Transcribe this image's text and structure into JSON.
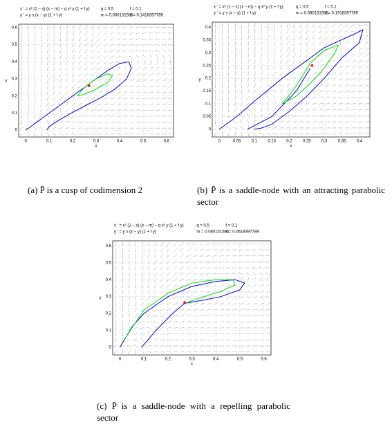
{
  "chart_data": [
    {
      "type": "line",
      "equation_x": "x ' = x² (1 − x) (x − m) − q x² y (1 + f y)",
      "equation_y": "y ' = y s (x − y) (1 + f y)",
      "params": {
        "q": {
          "value": 0.5,
          "label": "q = 0.5"
        },
        "f": {
          "value": 0.1,
          "label": "f = 0.1"
        },
        "m": {
          "value": 0.080131585,
          "label": "m = 0.080131585"
        },
        "s": {
          "value": 0.1418397789,
          "label": "s = 0.1418397789"
        }
      },
      "xlabel": "x",
      "ylabel": "y",
      "xlim": [
        -0.03,
        0.63
      ],
      "ylim": [
        -0.04,
        0.62
      ],
      "xticks": [
        0,
        0.1,
        0.2,
        0.3,
        0.4,
        0.5,
        0.6
      ],
      "yticks": [
        0,
        0.1,
        0.2,
        0.3,
        0.4,
        0.5,
        0.6
      ],
      "series": [
        {
          "color": "#0000dd",
          "x": [
            0,
            0.05,
            0.1,
            0.15,
            0.2,
            0.25,
            0.3,
            0.35,
            0.4,
            0.44,
            0.45,
            0.43,
            0.38,
            0.32,
            0.25,
            0.18,
            0.12,
            0.1,
            0.09
          ],
          "values": [
            0,
            0.05,
            0.1,
            0.15,
            0.2,
            0.25,
            0.3,
            0.35,
            0.39,
            0.4,
            0.36,
            0.3,
            0.24,
            0.19,
            0.14,
            0.09,
            0.04,
            0.02,
            0
          ]
        },
        {
          "color": "#00dd00",
          "x": [
            0.22,
            0.25,
            0.3,
            0.35,
            0.37,
            0.35,
            0.3,
            0.25,
            0.22
          ],
          "values": [
            0.2,
            0.25,
            0.3,
            0.33,
            0.32,
            0.28,
            0.24,
            0.21,
            0.2
          ]
        },
        {
          "color": "#ff0000",
          "x": [
            0.27
          ],
          "values": [
            0.26
          ]
        }
      ]
    },
    {
      "type": "line",
      "equation_x": "x ' = x² (1 − x) (x − m) − q x² y (1 + f y)",
      "equation_y": "y ' = y s (x − y) (1 + f y)",
      "params": {
        "q": {
          "value": 0.5,
          "label": "q = 0.5"
        },
        "f": {
          "value": 0.1,
          "label": "f = 0.1"
        },
        "m": {
          "value": 0.080131585,
          "label": "m = 0.080131585"
        },
        "s": {
          "value": 0.1918397789,
          "label": "s = 0.1918397789"
        }
      },
      "xlabel": "x",
      "ylabel": "y",
      "xlim": [
        -0.02,
        0.43
      ],
      "ylim": [
        -0.03,
        0.42
      ],
      "xticks": [
        0,
        0.05,
        0.1,
        0.15,
        0.2,
        0.25,
        0.3,
        0.35,
        0.4
      ],
      "yticks": [
        0,
        0.05,
        0.1,
        0.15,
        0.2,
        0.25,
        0.3,
        0.35,
        0.4
      ],
      "series": [
        {
          "color": "#0000dd",
          "x": [
            0,
            0.05,
            0.1,
            0.18,
            0.25,
            0.3,
            0.38,
            0.41,
            0.4,
            0.35,
            0.3,
            0.25,
            0.2,
            0.15,
            0.12,
            0.1
          ],
          "values": [
            0,
            0.05,
            0.11,
            0.2,
            0.27,
            0.32,
            0.37,
            0.39,
            0.34,
            0.28,
            0.2,
            0.13,
            0.07,
            0.02,
            0.005,
            0
          ]
        },
        {
          "color": "#0000dd",
          "x": [
            0.08,
            0.15,
            0.22,
            0.26
          ],
          "values": [
            0,
            0.05,
            0.15,
            0.24
          ]
        },
        {
          "color": "#00dd00",
          "x": [
            0.18,
            0.22,
            0.26,
            0.3,
            0.34,
            0.33,
            0.3,
            0.26,
            0.22,
            0.18
          ],
          "values": [
            0.1,
            0.17,
            0.26,
            0.31,
            0.33,
            0.3,
            0.24,
            0.18,
            0.13,
            0.1
          ]
        },
        {
          "color": "#ff0000",
          "x": [
            0.265
          ],
          "values": [
            0.25
          ]
        }
      ]
    },
    {
      "type": "line",
      "equation_x": "x ' = x² (1 − x) (x − m) − q x² y (1 + f y)",
      "equation_y": "y ' = y s (x − y) (1 + f y)",
      "params": {
        "q": {
          "value": 0.5,
          "label": "q = 0.5"
        },
        "f": {
          "value": 0.1,
          "label": "f = 0.1"
        },
        "m": {
          "value": 0.080131585,
          "label": "m = 0.080131585"
        },
        "s": {
          "value": 0.0618397789,
          "label": "s = 0.0618397789"
        }
      },
      "xlabel": "x",
      "ylabel": "y",
      "xlim": [
        -0.03,
        0.63
      ],
      "ylim": [
        -0.045,
        0.63
      ],
      "xticks": [
        0,
        0.1,
        0.2,
        0.3,
        0.4,
        0.5,
        0.6
      ],
      "yticks": [
        0,
        0.1,
        0.2,
        0.3,
        0.4,
        0.5,
        0.6
      ],
      "series": [
        {
          "color": "#0000dd",
          "x": [
            0,
            0.05,
            0.1,
            0.2,
            0.3,
            0.4,
            0.48,
            0.52,
            0.5,
            0.42,
            0.35,
            0.27
          ],
          "values": [
            0,
            0.12,
            0.2,
            0.3,
            0.36,
            0.39,
            0.4,
            0.38,
            0.34,
            0.3,
            0.28,
            0.26
          ]
        },
        {
          "color": "#0000dd",
          "x": [
            0.09,
            0.15,
            0.22,
            0.27
          ],
          "values": [
            0,
            0.1,
            0.2,
            0.26
          ]
        },
        {
          "color": "#00dd00",
          "x": [
            0.02,
            0.1,
            0.2,
            0.3,
            0.4,
            0.47,
            0.48,
            0.42,
            0.35,
            0.27
          ],
          "values": [
            0.05,
            0.22,
            0.32,
            0.38,
            0.4,
            0.4,
            0.37,
            0.33,
            0.3,
            0.26
          ]
        },
        {
          "color": "#ff0000",
          "x": [
            0.27
          ],
          "values": [
            0.265
          ]
        }
      ]
    }
  ],
  "captions": [
    "(a) P̄ is a cusp of codimension 2",
    "(b) P̄ is a saddle-node with an attracting parabolic sector",
    "(c) P̄ is a saddle-node with a repelling parabolic sector"
  ]
}
